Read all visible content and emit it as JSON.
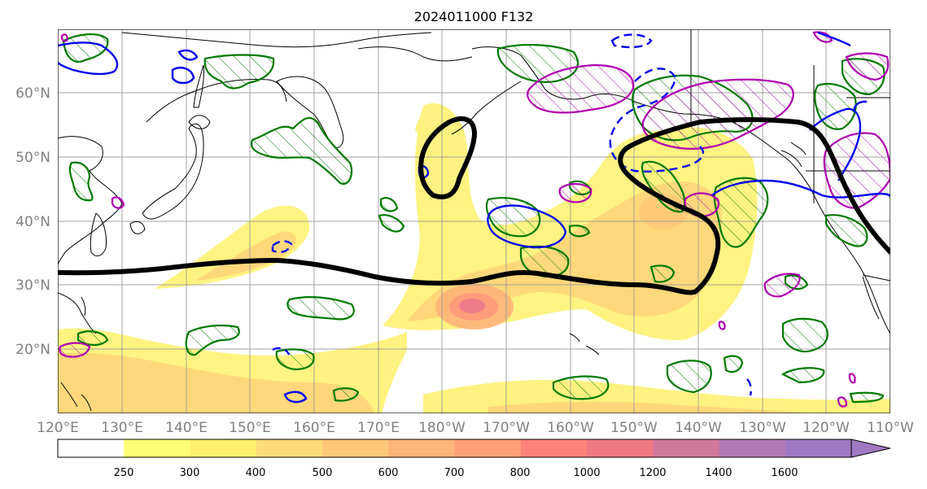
{
  "title": "2024011000 F132",
  "lon_ticks": [
    "120°E",
    "130°E",
    "140°E",
    "150°E",
    "160°E",
    "170°E",
    "180°W",
    "170°W",
    "160°W",
    "150°W",
    "140°W",
    "130°W",
    "120°W",
    "110°W"
  ],
  "lat_ticks": [
    "60°N",
    "50°N",
    "40°N",
    "30°N",
    "20°N"
  ],
  "colorbar": {
    "labels": [
      "250",
      "300",
      "400",
      "500",
      "600",
      "700",
      "800",
      "1000",
      "1200",
      "1400",
      "1600"
    ],
    "colors": [
      "#ffffff",
      "#ffff73",
      "#fff06e",
      "#ffdc78",
      "#ffc878",
      "#ffb478",
      "#ffa078",
      "#ff8278",
      "#f07882",
      "#d2789b",
      "#b478b4",
      "#a078c3"
    ],
    "extend": "max"
  },
  "colors": {
    "fill_low": "#fff27a",
    "fill_mid": "#ffd27a",
    "fill_high": "#ff9a7a",
    "fill_peak": "#f07c8a",
    "jet": "#000000",
    "green": "#007a00",
    "magenta": "#b000b0",
    "blue": "#0000ee",
    "coast": "#000000",
    "grid": "#9a9a9a"
  }
}
